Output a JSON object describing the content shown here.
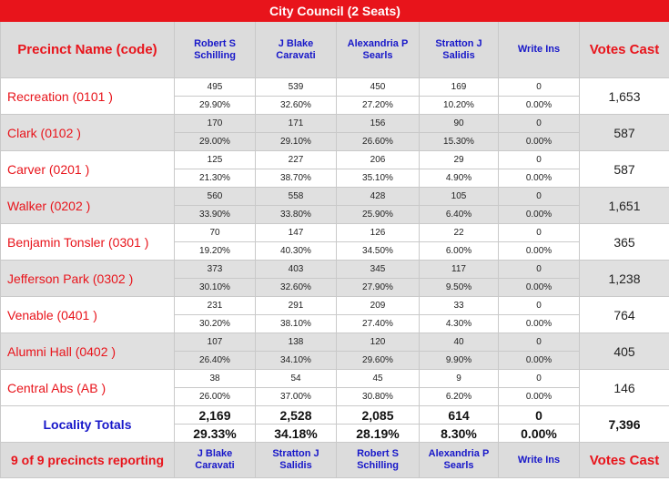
{
  "title": "City Council (2 Seats)",
  "header": {
    "precinct_label": "Precinct Name (code)",
    "candidates": [
      {
        "first": "Robert S",
        "last": "Schilling"
      },
      {
        "first": "J Blake",
        "last": "Caravati"
      },
      {
        "first": "Alexandria P",
        "last": "Searls"
      },
      {
        "first": "Stratton J",
        "last": "Salidis"
      },
      {
        "first": "Write Ins",
        "last": ""
      }
    ],
    "votes_cast_label": "Votes Cast"
  },
  "precincts": [
    {
      "name": "Recreation (0101 )",
      "votes": [
        "495",
        "539",
        "450",
        "169",
        "0"
      ],
      "pcts": [
        "29.90%",
        "32.60%",
        "27.20%",
        "10.20%",
        "0.00%"
      ],
      "total": "1,653"
    },
    {
      "name": "Clark (0102 )",
      "votes": [
        "170",
        "171",
        "156",
        "90",
        "0"
      ],
      "pcts": [
        "29.00%",
        "29.10%",
        "26.60%",
        "15.30%",
        "0.00%"
      ],
      "total": "587"
    },
    {
      "name": "Carver (0201 )",
      "votes": [
        "125",
        "227",
        "206",
        "29",
        "0"
      ],
      "pcts": [
        "21.30%",
        "38.70%",
        "35.10%",
        "4.90%",
        "0.00%"
      ],
      "total": "587"
    },
    {
      "name": "Walker (0202 )",
      "votes": [
        "560",
        "558",
        "428",
        "105",
        "0"
      ],
      "pcts": [
        "33.90%",
        "33.80%",
        "25.90%",
        "6.40%",
        "0.00%"
      ],
      "total": "1,651"
    },
    {
      "name": "Benjamin Tonsler (0301 )",
      "votes": [
        "70",
        "147",
        "126",
        "22",
        "0"
      ],
      "pcts": [
        "19.20%",
        "40.30%",
        "34.50%",
        "6.00%",
        "0.00%"
      ],
      "total": "365"
    },
    {
      "name": "Jefferson Park (0302 )",
      "votes": [
        "373",
        "403",
        "345",
        "117",
        "0"
      ],
      "pcts": [
        "30.10%",
        "32.60%",
        "27.90%",
        "9.50%",
        "0.00%"
      ],
      "total": "1,238"
    },
    {
      "name": "Venable (0401 )",
      "votes": [
        "231",
        "291",
        "209",
        "33",
        "0"
      ],
      "pcts": [
        "30.20%",
        "38.10%",
        "27.40%",
        "4.30%",
        "0.00%"
      ],
      "total": "764"
    },
    {
      "name": "Alumni Hall (0402 )",
      "votes": [
        "107",
        "138",
        "120",
        "40",
        "0"
      ],
      "pcts": [
        "26.40%",
        "34.10%",
        "29.60%",
        "9.90%",
        "0.00%"
      ],
      "total": "405"
    },
    {
      "name": "Central Abs (AB )",
      "votes": [
        "38",
        "54",
        "45",
        "9",
        "0"
      ],
      "pcts": [
        "26.00%",
        "37.00%",
        "30.80%",
        "6.20%",
        "0.00%"
      ],
      "total": "146"
    }
  ],
  "totals": {
    "label": "Locality Totals",
    "votes": [
      "2,169",
      "2,528",
      "2,085",
      "614",
      "0"
    ],
    "pcts": [
      "29.33%",
      "34.18%",
      "28.19%",
      "8.30%",
      "0.00%"
    ],
    "total": "7,396"
  },
  "footer": {
    "reporting": "9 of 9 precincts reporting",
    "candidates": [
      {
        "first": "J Blake",
        "last": "Caravati"
      },
      {
        "first": "Stratton J",
        "last": "Salidis"
      },
      {
        "first": "Robert S",
        "last": "Schilling"
      },
      {
        "first": "Alexandria P",
        "last": "Searls"
      },
      {
        "first": "Write Ins",
        "last": ""
      }
    ],
    "votes_cast_label": "Votes Cast"
  }
}
